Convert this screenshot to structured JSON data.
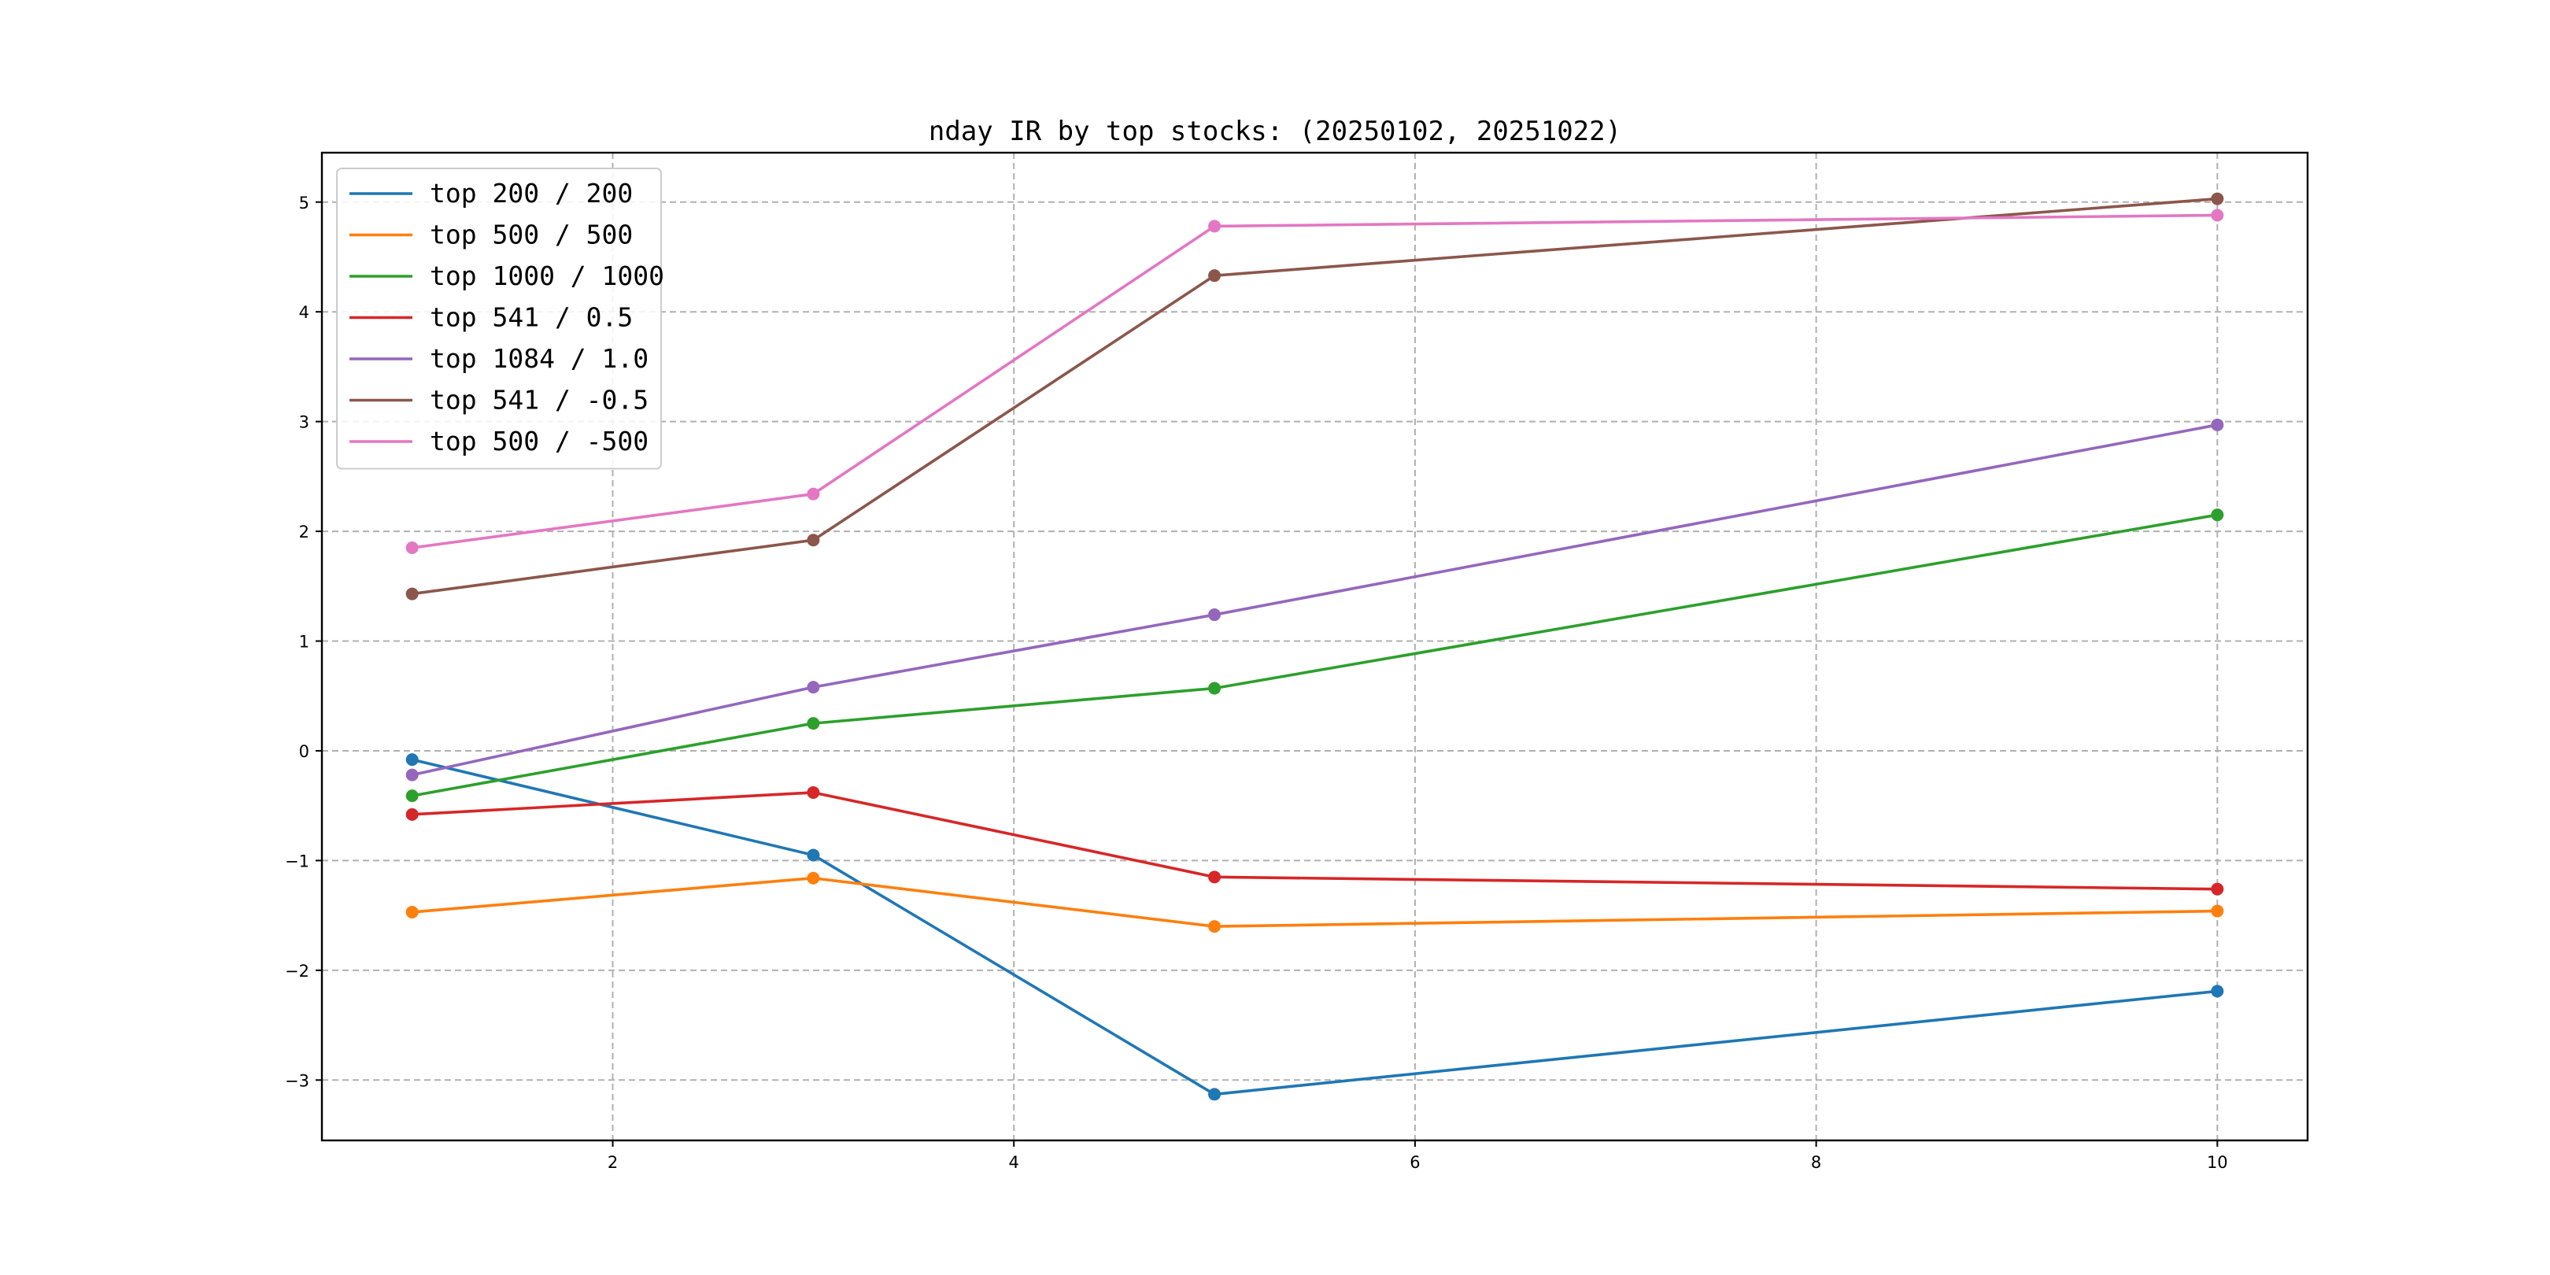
{
  "chart_data": {
    "type": "line",
    "title": "nday IR by top stocks: (20250102, 20251022)",
    "xlabel": "",
    "ylabel": "",
    "x": [
      1,
      3,
      5,
      10
    ],
    "xlim": [
      0.55,
      10.45
    ],
    "ylim": [
      -3.55,
      5.45
    ],
    "xticks": [
      2,
      4,
      6,
      8,
      10
    ],
    "yticks": [
      -3,
      -2,
      -1,
      0,
      1,
      2,
      3,
      4,
      5
    ],
    "grid": true,
    "legend_position": "upper-left",
    "markers": true,
    "series": [
      {
        "name": "top 200 / 200",
        "color": "#1f77b4",
        "values": [
          -0.08,
          -0.95,
          -3.13,
          -2.19
        ]
      },
      {
        "name": "top 500 / 500",
        "color": "#ff7f0e",
        "values": [
          -1.47,
          -1.16,
          -1.6,
          -1.46
        ]
      },
      {
        "name": "top 1000 / 1000",
        "color": "#2ca02c",
        "values": [
          -0.41,
          0.25,
          0.57,
          2.15
        ]
      },
      {
        "name": "top 541 / 0.5",
        "color": "#d62728",
        "values": [
          -0.58,
          -0.38,
          -1.15,
          -1.26
        ]
      },
      {
        "name": "top 1084 / 1.0",
        "color": "#9467bd",
        "values": [
          -0.22,
          0.58,
          1.24,
          2.97
        ]
      },
      {
        "name": "top 541 / -0.5",
        "color": "#8c564b",
        "values": [
          1.43,
          1.92,
          4.33,
          5.03
        ]
      },
      {
        "name": "top 500 / -500",
        "color": "#e377c2",
        "values": [
          1.85,
          2.34,
          4.78,
          4.88
        ]
      }
    ]
  }
}
